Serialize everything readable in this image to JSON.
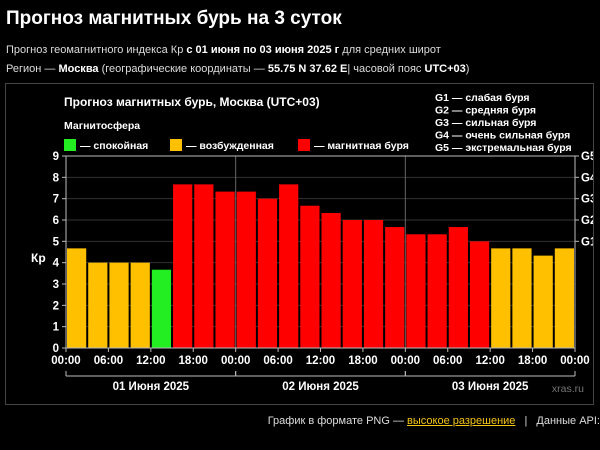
{
  "page": {
    "title": "Прогноз магнитных бурь на 3 суток",
    "line1_pre": "Прогноз геомагнитного индекса Кр",
    "line1_bold": "с 01 июня по 03 июня 2025 г",
    "line1_post": "для средних широт",
    "line2_a": "Регион —",
    "line2_region": "Москва",
    "line2_b": "(географические координаты —",
    "line2_coords": "55.75 N 37.62 E",
    "line2_c": "| часовой пояс",
    "line2_tz": "UTC+03",
    "line2_d": ")"
  },
  "footer": {
    "prefix": "График в формате PNG —",
    "link": "высокое разрешение",
    "api": "Данные API:"
  },
  "chart_data": {
    "type": "bar",
    "title": "Прогноз магнитных бурь, Москва (UTC+03)",
    "ylabel": "Кр",
    "ylim": [
      0,
      9
    ],
    "yticks": [
      "0",
      "1",
      "2",
      "3",
      "4",
      "5",
      "6",
      "7",
      "8",
      "9"
    ],
    "right_ticks": [
      {
        "label": "G1",
        "value": 5
      },
      {
        "label": "G2",
        "value": 6
      },
      {
        "label": "G3",
        "value": 7
      },
      {
        "label": "G4",
        "value": 8
      },
      {
        "label": "G5",
        "value": 9
      }
    ],
    "legend_title": "Магнитосфера",
    "legend": [
      {
        "label": "— спокойная",
        "color": "#22ee22"
      },
      {
        "label": "— возбужденная",
        "color": "#ffc000"
      },
      {
        "label": "— магнитная буря",
        "color": "#ff0000"
      }
    ],
    "g_legend": [
      "G1 — слабая буря",
      "G2 — средняя буря",
      "G3 — сильная буря",
      "G4 — очень сильная буря",
      "G5 — экстремальная буря"
    ],
    "x_tick_labels": [
      "00:00",
      "06:00",
      "12:00",
      "18:00",
      "00:00",
      "06:00",
      "12:00",
      "18:00",
      "00:00",
      "06:00",
      "12:00",
      "18:00",
      "00:00"
    ],
    "day_labels": [
      "01 Июня 2025",
      "02 Июня 2025",
      "03 Июня 2025"
    ],
    "watermark": "xras.ru",
    "values": [
      4.67,
      4.0,
      4.0,
      4.0,
      3.67,
      7.67,
      7.67,
      7.33,
      7.33,
      7.0,
      7.67,
      6.67,
      6.33,
      6.0,
      6.0,
      5.67,
      5.33,
      5.33,
      5.67,
      5.0,
      4.67,
      4.67,
      4.33,
      4.67
    ],
    "colors": [
      "#ffc000",
      "#ffc000",
      "#ffc000",
      "#ffc000",
      "#22ee22",
      "#ff0000",
      "#ff0000",
      "#ff0000",
      "#ff0000",
      "#ff0000",
      "#ff0000",
      "#ff0000",
      "#ff0000",
      "#ff0000",
      "#ff0000",
      "#ff0000",
      "#ff0000",
      "#ff0000",
      "#ff0000",
      "#ff0000",
      "#ffc000",
      "#ffc000",
      "#ffc000",
      "#ffc000"
    ]
  }
}
